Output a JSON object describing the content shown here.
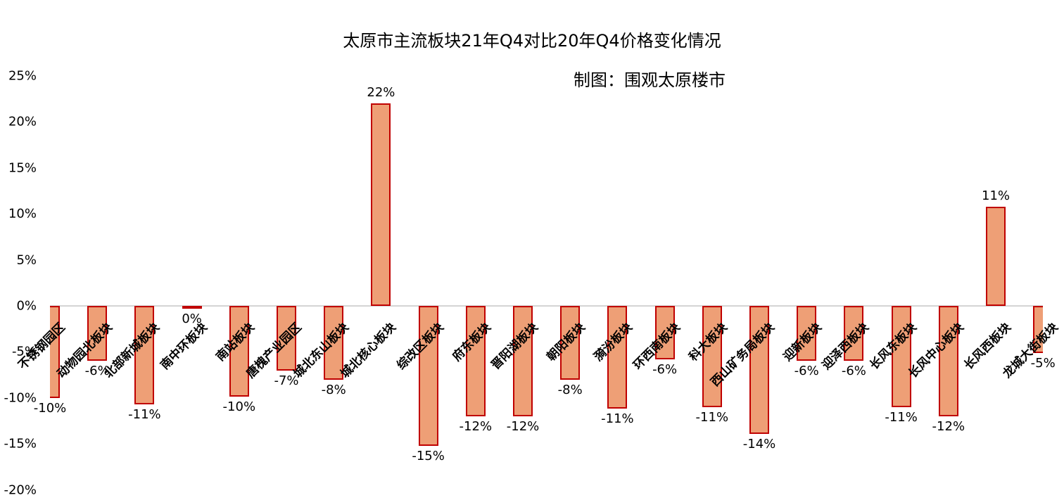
{
  "chart_data": {
    "type": "bar",
    "title": "太原市主流板块21年Q4对比20年Q4价格变化情况",
    "subtitle": "制图：围观太原楼市",
    "xlabel": "",
    "ylabel": "",
    "ylim": [
      -0.2,
      0.25
    ],
    "yticks": [
      "25%",
      "20%",
      "15%",
      "10%",
      "5%",
      "0%",
      "-5%",
      "-10%",
      "-15%",
      "-20%"
    ],
    "ytick_values": [
      0.25,
      0.2,
      0.15,
      0.1,
      0.05,
      0,
      -0.05,
      -0.1,
      -0.15,
      -0.2
    ],
    "grid": false,
    "legend": null,
    "bar_fill": "#ee9f76",
    "bar_border": "#c00000",
    "categories": [
      "不锈钢园区",
      "动物园北板块",
      "北部新城板块",
      "南中环板块",
      "南站板块",
      "唐槐产业园区",
      "城北东山板块",
      "城北核心板块",
      "综改区板块",
      "府东板块",
      "晋阳湖板块",
      "朝阳板块",
      "漪汾板块",
      "环西南板块",
      "科大板块",
      "西山矿务局板块",
      "迎新板块",
      "迎泽西板块",
      "长风东板块",
      "长风中心板块",
      "长风西板块",
      "龙城大街板块"
    ],
    "values": [
      -0.1,
      -0.06,
      -0.107,
      -0.003,
      -0.099,
      -0.07,
      -0.08,
      0.22,
      -0.152,
      -0.12,
      -0.12,
      -0.08,
      -0.112,
      -0.058,
      -0.11,
      -0.139,
      -0.06,
      -0.06,
      -0.11,
      -0.12,
      0.108,
      -0.051
    ],
    "value_labels": [
      "-10%",
      "-6%",
      "-11%",
      "0%",
      "-10%",
      "-7%",
      "-8%",
      "22%",
      "-15%",
      "-12%",
      "-12%",
      "-8%",
      "-11%",
      "-6%",
      "-11%",
      "-14%",
      "-6%",
      "-6%",
      "-11%",
      "-12%",
      "11%",
      "-5%"
    ]
  }
}
